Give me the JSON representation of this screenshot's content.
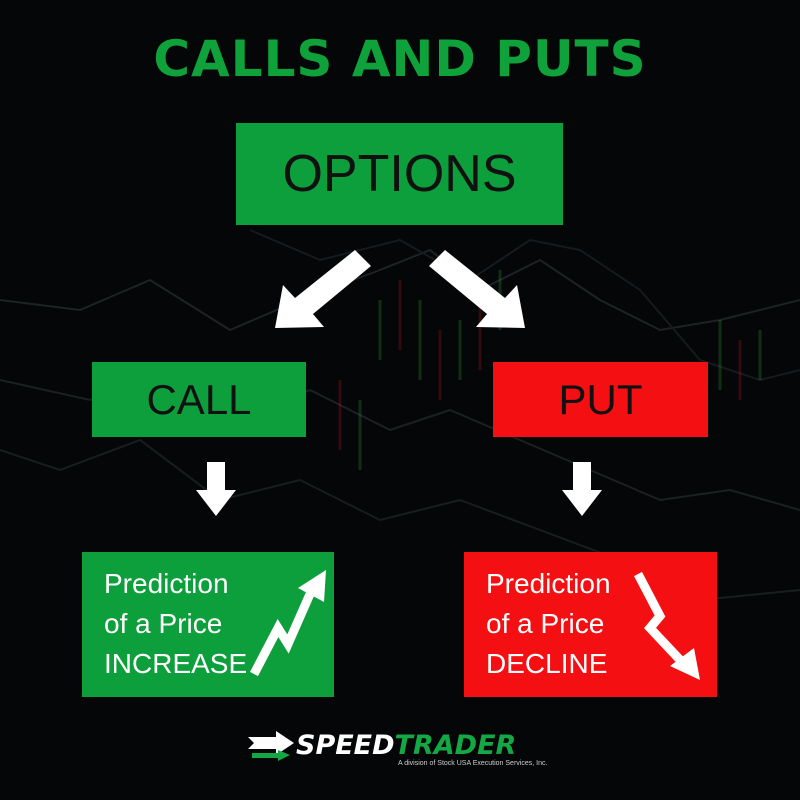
{
  "title": "CALLS AND PUTS",
  "options_label": "OPTIONS",
  "call": {
    "label": "CALL",
    "prediction": [
      "Prediction",
      "of a Price",
      "INCREASE"
    ]
  },
  "put": {
    "label": "PUT",
    "prediction": [
      "Prediction",
      "of a Price",
      "DECLINE"
    ]
  },
  "logo": {
    "speed": "SPEED",
    "trader": "TRADER",
    "tagline": "A division of Stock USA Execution Services, Inc."
  },
  "colors": {
    "green": "#0d9f3c",
    "red": "#f40f12",
    "title_green": "#0fa13a",
    "background": "#050607",
    "arrow": "#ffffff"
  },
  "icons": [
    "arrow-down-left-icon",
    "arrow-down-right-icon",
    "arrow-down-icon",
    "trend-up-icon",
    "trend-down-icon",
    "speedtrader-logo-icon"
  ]
}
